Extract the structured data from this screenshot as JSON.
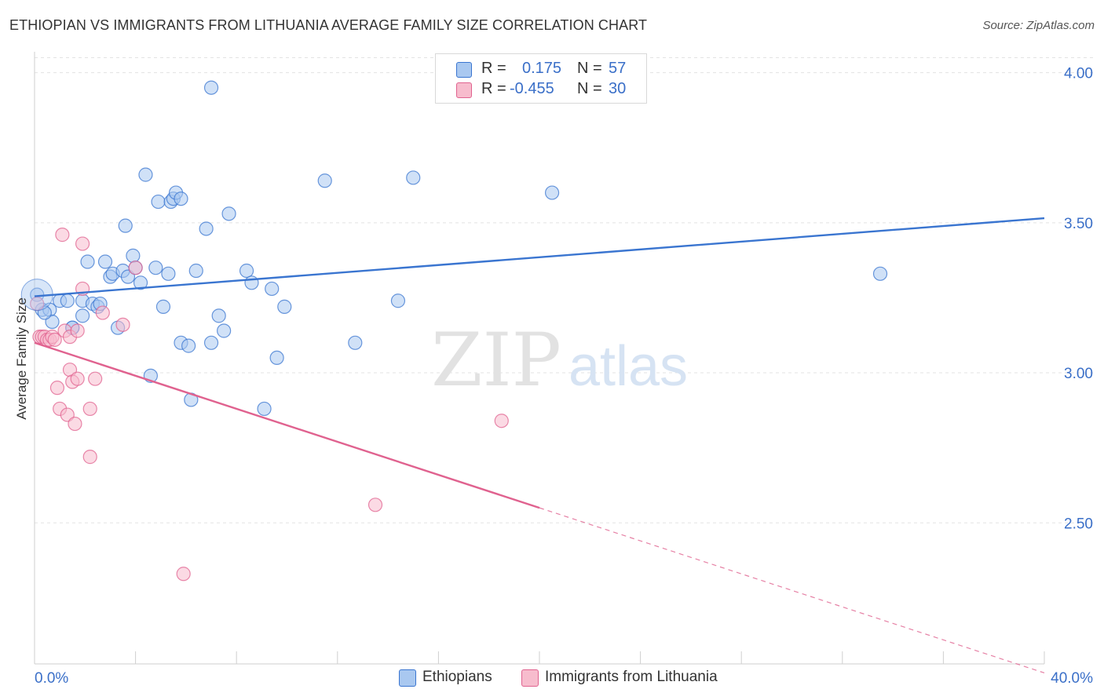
{
  "title": "ETHIOPIAN VS IMMIGRANTS FROM LITHUANIA AVERAGE FAMILY SIZE CORRELATION CHART",
  "source": "Source: ZipAtlas.com",
  "watermark": {
    "zip": "ZIP",
    "atlas": "atlas"
  },
  "stats": [
    {
      "r_label": "R =",
      "r_value": "0.175",
      "n_label": "N =",
      "n_value": "57",
      "color": "#a9c8f0"
    },
    {
      "r_label": "R =",
      "r_value": "-0.455",
      "n_label": "N =",
      "n_value": "30",
      "color": "#f7bccd"
    }
  ],
  "legend": [
    {
      "label": "Ethiopians",
      "color": "#a9c8f0"
    },
    {
      "label": "Immigrants from Lithuania",
      "color": "#f7bccd"
    }
  ],
  "chart_data": {
    "type": "scatter",
    "title": "ETHIOPIAN VS IMMIGRANTS FROM LITHUANIA AVERAGE FAMILY SIZE CORRELATION CHART",
    "xlabel": "",
    "ylabel": "Average Family Size",
    "xlim": [
      0,
      40
    ],
    "ylim": [
      2.03,
      4.08
    ],
    "x_tick_labels": [
      "0.0%",
      "40.0%"
    ],
    "y_ticks": [
      2.5,
      3.0,
      3.5,
      4.0
    ],
    "y_tick_labels": [
      "2.50",
      "3.00",
      "3.50",
      "4.00"
    ],
    "grid": true,
    "series": [
      {
        "name": "Ethiopians",
        "color": "#3a75d0",
        "fill": "#a9c8f0",
        "trend": {
          "x": [
            0,
            40
          ],
          "y": [
            3.255,
            3.515
          ],
          "dashed_from": null
        },
        "points": [
          {
            "x": 0.3,
            "y": 3.21
          },
          {
            "x": 0.6,
            "y": 3.21
          },
          {
            "x": 0.7,
            "y": 3.17
          },
          {
            "x": 1.0,
            "y": 3.24
          },
          {
            "x": 1.3,
            "y": 3.24
          },
          {
            "x": 1.5,
            "y": 3.15
          },
          {
            "x": 1.5,
            "y": 3.15
          },
          {
            "x": 1.9,
            "y": 3.24
          },
          {
            "x": 1.9,
            "y": 3.19
          },
          {
            "x": 2.1,
            "y": 3.37
          },
          {
            "x": 2.3,
            "y": 3.23
          },
          {
            "x": 2.5,
            "y": 3.22
          },
          {
            "x": 2.6,
            "y": 3.23
          },
          {
            "x": 2.8,
            "y": 3.37
          },
          {
            "x": 3.0,
            "y": 3.32
          },
          {
            "x": 3.1,
            "y": 3.33
          },
          {
            "x": 3.3,
            "y": 3.15
          },
          {
            "x": 3.5,
            "y": 3.34
          },
          {
            "x": 3.6,
            "y": 3.49
          },
          {
            "x": 3.7,
            "y": 3.32
          },
          {
            "x": 3.9,
            "y": 3.39
          },
          {
            "x": 4.0,
            "y": 3.35
          },
          {
            "x": 4.2,
            "y": 3.3
          },
          {
            "x": 4.4,
            "y": 3.66
          },
          {
            "x": 4.6,
            "y": 2.99
          },
          {
            "x": 4.8,
            "y": 3.35
          },
          {
            "x": 4.9,
            "y": 3.57
          },
          {
            "x": 5.1,
            "y": 3.22
          },
          {
            "x": 5.3,
            "y": 3.33
          },
          {
            "x": 5.4,
            "y": 3.57
          },
          {
            "x": 5.5,
            "y": 3.58
          },
          {
            "x": 5.6,
            "y": 3.6
          },
          {
            "x": 5.8,
            "y": 3.58
          },
          {
            "x": 5.8,
            "y": 3.1
          },
          {
            "x": 6.1,
            "y": 3.09
          },
          {
            "x": 6.2,
            "y": 2.91
          },
          {
            "x": 6.4,
            "y": 3.34
          },
          {
            "x": 6.8,
            "y": 3.48
          },
          {
            "x": 7.0,
            "y": 3.95
          },
          {
            "x": 7.0,
            "y": 3.1
          },
          {
            "x": 7.3,
            "y": 3.19
          },
          {
            "x": 7.5,
            "y": 3.14
          },
          {
            "x": 7.7,
            "y": 3.53
          },
          {
            "x": 8.4,
            "y": 3.34
          },
          {
            "x": 8.6,
            "y": 3.3
          },
          {
            "x": 9.1,
            "y": 2.88
          },
          {
            "x": 9.4,
            "y": 3.28
          },
          {
            "x": 9.6,
            "y": 3.05
          },
          {
            "x": 9.9,
            "y": 3.22
          },
          {
            "x": 11.5,
            "y": 3.64
          },
          {
            "x": 12.7,
            "y": 3.1
          },
          {
            "x": 14.4,
            "y": 3.24
          },
          {
            "x": 15.0,
            "y": 3.65
          },
          {
            "x": 20.5,
            "y": 3.6
          },
          {
            "x": 33.5,
            "y": 3.33
          },
          {
            "x": 0.1,
            "y": 3.26
          },
          {
            "x": 0.4,
            "y": 3.2
          }
        ]
      },
      {
        "name": "Immigrants from Lithuania",
        "color": "#e0628f",
        "fill": "#f7bccd",
        "trend": {
          "x": [
            0,
            40
          ],
          "y": [
            3.1,
            2.0
          ],
          "dashed_from": 20
        },
        "points": [
          {
            "x": 0.1,
            "y": 3.23
          },
          {
            "x": 0.2,
            "y": 3.12
          },
          {
            "x": 0.3,
            "y": 3.12
          },
          {
            "x": 0.4,
            "y": 3.12
          },
          {
            "x": 0.5,
            "y": 3.11
          },
          {
            "x": 0.6,
            "y": 3.11
          },
          {
            "x": 0.7,
            "y": 3.12
          },
          {
            "x": 0.8,
            "y": 3.11
          },
          {
            "x": 0.9,
            "y": 2.95
          },
          {
            "x": 1.0,
            "y": 2.88
          },
          {
            "x": 1.1,
            "y": 3.46
          },
          {
            "x": 1.2,
            "y": 3.14
          },
          {
            "x": 1.3,
            "y": 2.86
          },
          {
            "x": 1.4,
            "y": 3.12
          },
          {
            "x": 1.4,
            "y": 3.01
          },
          {
            "x": 1.5,
            "y": 2.97
          },
          {
            "x": 1.6,
            "y": 2.83
          },
          {
            "x": 1.7,
            "y": 3.14
          },
          {
            "x": 1.7,
            "y": 2.98
          },
          {
            "x": 1.9,
            "y": 3.43
          },
          {
            "x": 1.9,
            "y": 3.28
          },
          {
            "x": 2.2,
            "y": 2.88
          },
          {
            "x": 2.2,
            "y": 2.72
          },
          {
            "x": 2.4,
            "y": 2.98
          },
          {
            "x": 2.7,
            "y": 3.2
          },
          {
            "x": 3.5,
            "y": 3.16
          },
          {
            "x": 4.0,
            "y": 3.35
          },
          {
            "x": 5.9,
            "y": 2.33
          },
          {
            "x": 13.5,
            "y": 2.56
          },
          {
            "x": 18.5,
            "y": 2.84
          }
        ]
      }
    ]
  }
}
